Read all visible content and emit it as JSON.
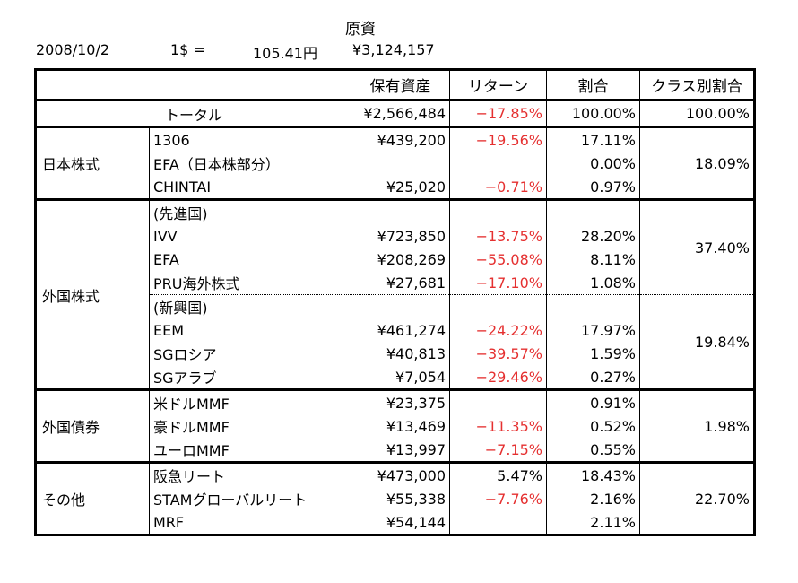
{
  "title": "原資",
  "info": {
    "date": "2008/10/2",
    "rate_label": "1$ =",
    "rate": "105.41円",
    "total": "¥3,124,157"
  },
  "table": {
    "header": [
      "保有資産",
      "リターン",
      "割合",
      "クラス別割合"
    ],
    "total": {
      "label": "トータル",
      "assets": "¥2,566,484",
      "return": "−17.85%",
      "ratio": "100.00%",
      "class_ratio": "100.00%"
    },
    "groups": [
      {
        "name": "日本株式",
        "blocks": [
          {
            "class_ratio": "18.09%",
            "rows": [
              {
                "name": "1306",
                "assets": "¥439,200",
                "return": "−19.56%",
                "ratio": "17.11%"
              },
              {
                "name": "EFA（日本株部分）",
                "ratio": "0.00%"
              },
              {
                "name": "CHINTAI",
                "assets": "¥25,020",
                "return": "−0.71%",
                "ratio": "0.97%"
              }
            ]
          }
        ]
      },
      {
        "name": "外国株式",
        "blocks": [
          {
            "class_ratio": "37.40%",
            "rows": [
              {
                "name": "(先進国)"
              },
              {
                "name": "IVV",
                "assets": "¥723,850",
                "return": "−13.75%",
                "ratio": "28.20%"
              },
              {
                "name": "EFA",
                "assets": "¥208,269",
                "return": "−55.08%",
                "ratio": "8.11%"
              },
              {
                "name": "PRU海外株式",
                "assets": "¥27,681",
                "return": "−17.10%",
                "ratio": "1.08%"
              }
            ]
          },
          {
            "class_ratio": "19.84%",
            "rows": [
              {
                "name": "(新興国)"
              },
              {
                "name": "EEM",
                "assets": "¥461,274",
                "return": "−24.22%",
                "ratio": "17.97%"
              },
              {
                "name": "SGロシア",
                "assets": "¥40,813",
                "return": "−39.57%",
                "ratio": "1.59%"
              },
              {
                "name": "SGアラブ",
                "assets": "¥7,054",
                "return": "−29.46%",
                "ratio": "0.27%"
              }
            ]
          }
        ]
      },
      {
        "name": "外国債券",
        "blocks": [
          {
            "class_ratio": "1.98%",
            "rows": [
              {
                "name": "米ドルMMF",
                "assets": "¥23,375",
                "ratio": "0.91%"
              },
              {
                "name": "豪ドルMMF",
                "assets": "¥13,469",
                "return": "−11.35%",
                "ratio": "0.52%"
              },
              {
                "name": "ユーロMMF",
                "assets": "¥13,997",
                "return": "−7.15%",
                "ratio": "0.55%"
              }
            ]
          }
        ]
      },
      {
        "name": "その他",
        "blocks": [
          {
            "class_ratio": "22.70%",
            "rows": [
              {
                "name": "阪急リート",
                "assets": "¥473,000",
                "return": "5.47%",
                "ratio": "18.43%"
              },
              {
                "name": "STAMグローバルリート",
                "assets": "¥55,338",
                "return": "−7.76%",
                "ratio": "2.16%"
              },
              {
                "name": "MRF",
                "assets": "¥54,144",
                "ratio": "2.11%"
              }
            ]
          }
        ]
      }
    ]
  }
}
